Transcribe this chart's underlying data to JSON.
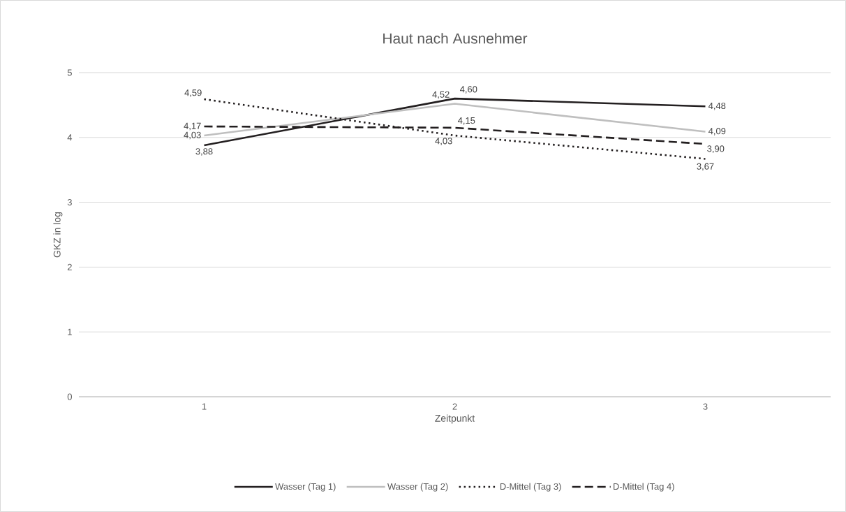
{
  "chart_data": {
    "type": "line",
    "title": "Haut nach Ausnehmer",
    "xlabel": "Zeitpunkt",
    "ylabel": "GKZ in log",
    "categories": [
      "1",
      "2",
      "3"
    ],
    "ylim": [
      0,
      5
    ],
    "yticks": [
      0,
      1,
      2,
      3,
      4,
      5
    ],
    "grid": "y",
    "legend": "bottom",
    "series": [
      {
        "name": "Wasser (Tag 1)",
        "color": "#231f20",
        "line_style": "solid",
        "values": [
          3.88,
          4.6,
          4.48
        ],
        "value_labels": [
          "3,88",
          "4,60",
          "4,48"
        ]
      },
      {
        "name": "Wasser (Tag 2)",
        "color": "#bfbfbf",
        "line_style": "solid",
        "values": [
          4.03,
          4.52,
          4.09
        ],
        "value_labels": [
          "4,03",
          "4,52",
          "4,09"
        ]
      },
      {
        "name": "D-Mittel (Tag 3)",
        "color": "#231f20",
        "line_style": "dotted",
        "values": [
          4.59,
          4.03,
          3.67
        ],
        "value_labels": [
          "4,59",
          "4,03",
          "3,67"
        ]
      },
      {
        "name": "D-Mittel (Tag 4)",
        "color": "#231f20",
        "line_style": "dashed",
        "values": [
          4.17,
          4.15,
          3.9
        ],
        "value_labels": [
          "4,17",
          "4,15",
          "3,90"
        ]
      }
    ]
  }
}
